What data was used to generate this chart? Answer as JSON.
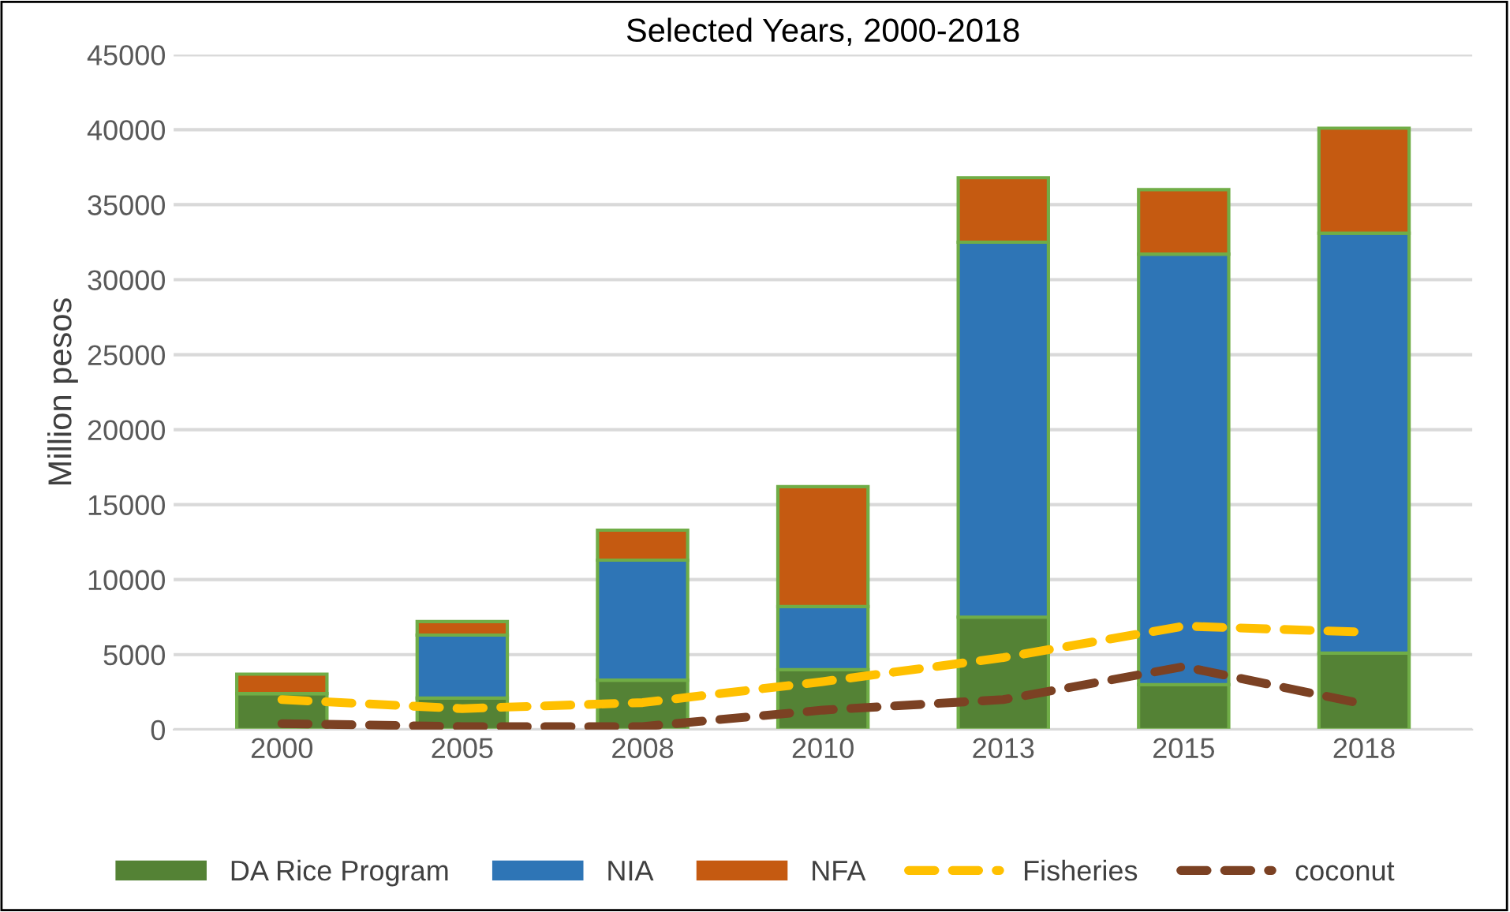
{
  "chart_data": {
    "type": "bar",
    "title": "Selected Years, 2000-2018",
    "ylabel": "Million pesos",
    "categories": [
      "2000",
      "2005",
      "2008",
      "2010",
      "2013",
      "2015",
      "2018"
    ],
    "stacked": true,
    "ylim": [
      0,
      45000
    ],
    "yticks": [
      0,
      5000,
      10000,
      15000,
      20000,
      25000,
      30000,
      35000,
      40000,
      45000
    ],
    "grid": "y",
    "legend": "bottom",
    "series": [
      {
        "name": "DA Rice Program",
        "color": "#548235",
        "values": [
          2400,
          2100,
          3300,
          4000,
          7500,
          3000,
          5100
        ]
      },
      {
        "name": "NIA",
        "color": "#2e75b6",
        "values": [
          0,
          4200,
          8000,
          4200,
          25000,
          28700,
          28000
        ]
      },
      {
        "name": "NFA",
        "color": "#c55a11",
        "values": [
          1300,
          900,
          2000,
          8000,
          4300,
          4300,
          7000
        ]
      },
      {
        "name": "Fisheries",
        "type": "line",
        "line_style": "dashed",
        "color": "#ffc000",
        "values": [
          2000,
          1400,
          1800,
          3200,
          4800,
          6900,
          6500
        ]
      },
      {
        "name": "coconut",
        "type": "line",
        "line_style": "dashed",
        "color": "#7b4123",
        "values": [
          400,
          200,
          200,
          1300,
          2000,
          4200,
          1700
        ]
      }
    ]
  }
}
